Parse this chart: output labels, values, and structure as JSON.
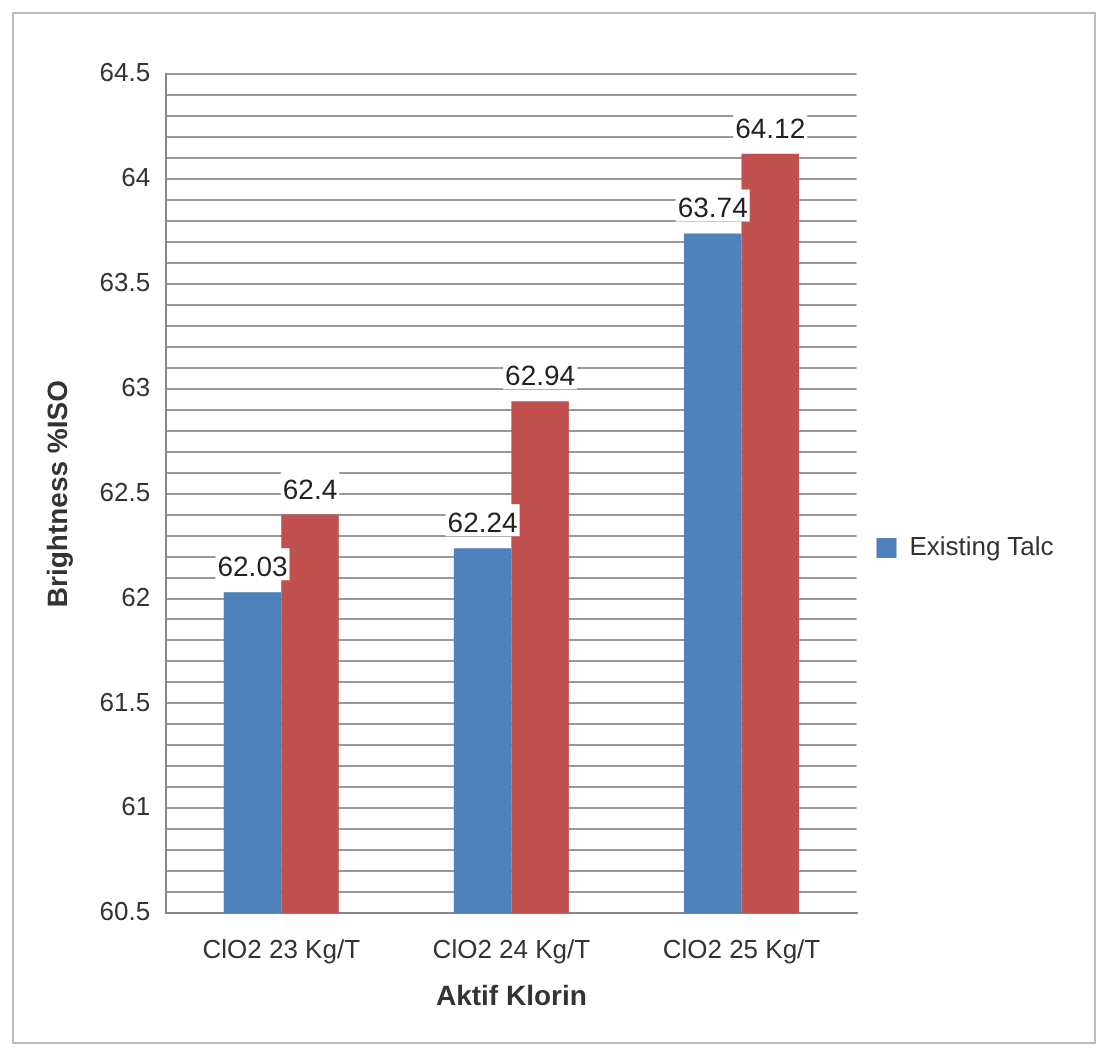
{
  "chart_data": {
    "type": "bar",
    "xlabel": "Aktif Klorin",
    "ylabel": "Brightness %ISO",
    "categories": [
      "ClO2 23 Kg/T",
      "ClO2 24 Kg/T",
      "ClO2 25 Kg/T"
    ],
    "series": [
      {
        "name": "Existing Talc",
        "color": "#4f81bd",
        "values": [
          62.03,
          62.24,
          63.74
        ]
      },
      {
        "color": "#c0504d",
        "values": [
          62.4,
          62.94,
          64.12
        ]
      }
    ],
    "ylim": [
      60.5,
      64.5
    ],
    "yticks": [
      60.5,
      {
        "value": 60.6,
        "label": null
      },
      {
        "value": 60.7,
        "label": null
      },
      {
        "value": 60.8,
        "label": null
      },
      {
        "value": 60.9,
        "label": null
      },
      61,
      {
        "value": 61.1,
        "label": null
      },
      {
        "value": 61.2,
        "label": null
      },
      {
        "value": 61.3,
        "label": null
      },
      {
        "value": 61.4,
        "label": null
      },
      61.5,
      {
        "value": 61.6,
        "label": null
      },
      {
        "value": 61.7,
        "label": null
      },
      {
        "value": 61.8,
        "label": null
      },
      {
        "value": 61.9,
        "label": null
      },
      62,
      {
        "value": 62.1,
        "label": null
      },
      {
        "value": 62.2,
        "label": null
      },
      {
        "value": 62.3,
        "label": null
      },
      {
        "value": 62.4,
        "label": null
      },
      62.5,
      {
        "value": 62.6,
        "label": null
      },
      {
        "value": 62.7,
        "label": null
      },
      {
        "value": 62.8,
        "label": null
      },
      {
        "value": 62.9,
        "label": null
      },
      63,
      {
        "value": 63.1,
        "label": null
      },
      {
        "value": 63.2,
        "label": null
      },
      {
        "value": 63.3,
        "label": null
      },
      {
        "value": 63.4,
        "label": null
      },
      63.5,
      {
        "value": 63.6,
        "label": null
      },
      {
        "value": 63.7,
        "label": null
      },
      {
        "value": 63.8,
        "label": null
      },
      {
        "value": 63.9,
        "label": null
      },
      64,
      {
        "value": 64.1,
        "label": null
      },
      {
        "value": 64.2,
        "label": null
      },
      {
        "value": 64.3,
        "label": null
      },
      {
        "value": 64.4,
        "label": null
      },
      64.5
    ],
    "grid": "y",
    "legend": "right",
    "data_labels": true
  }
}
